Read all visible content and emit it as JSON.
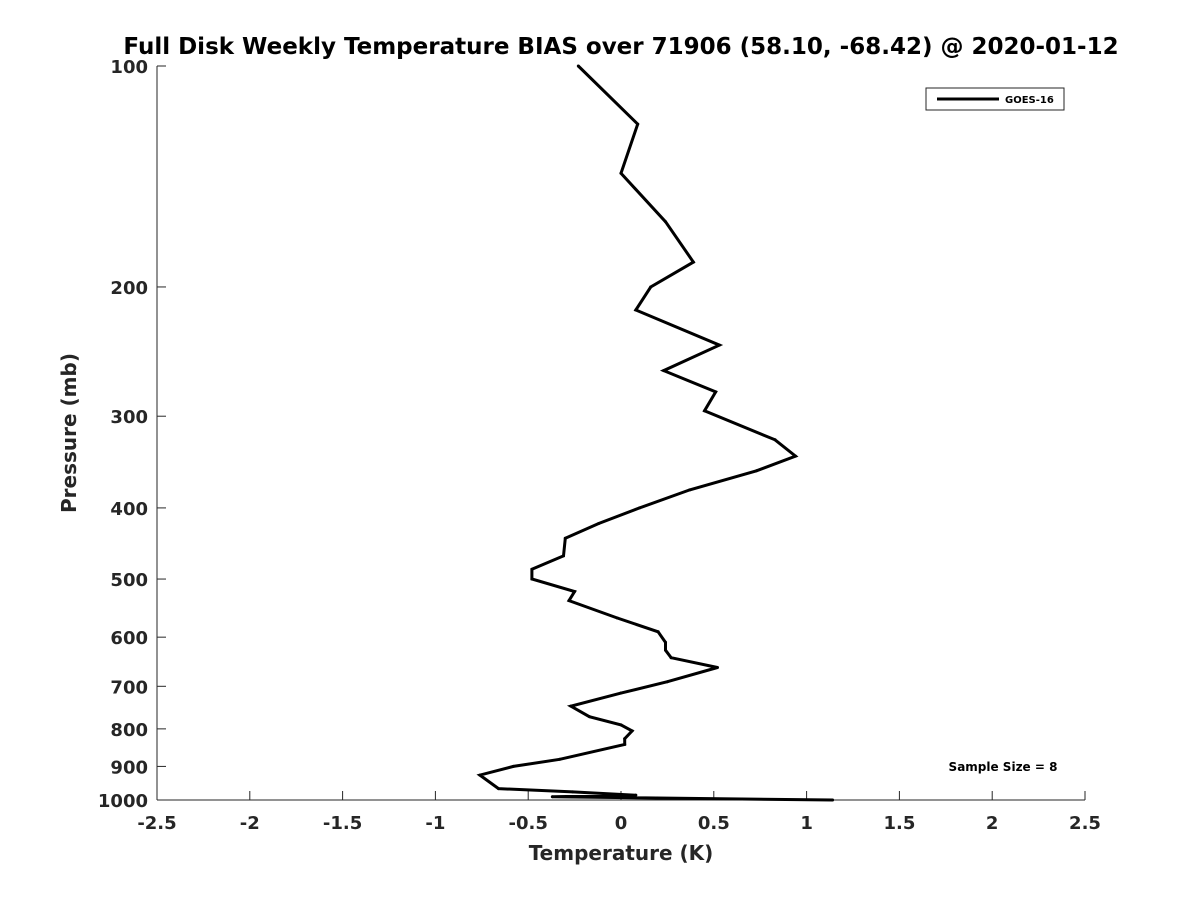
{
  "chart_data": {
    "type": "line",
    "title": "Full Disk Weekly Temperature BIAS over 71906 (58.10, -68.42) @ 2020-01-12",
    "xlabel": "Temperature (K)",
    "ylabel": "Pressure (mb)",
    "xlim": [
      -2.5,
      2.5
    ],
    "ylim": [
      1000,
      100
    ],
    "yscale": "log",
    "xticks": [
      -2.5,
      -2,
      -1.5,
      -1,
      -0.5,
      0,
      0.5,
      1,
      1.5,
      2,
      2.5
    ],
    "xtick_labels": [
      "-2.5",
      "-2",
      "-1.5",
      "-1",
      "-0.5",
      "0",
      "0.5",
      "1",
      "1.5",
      "2",
      "2.5"
    ],
    "yticks": [
      100,
      200,
      300,
      400,
      500,
      600,
      700,
      800,
      900,
      1000
    ],
    "ytick_labels": [
      "100",
      "200",
      "300",
      "400",
      "500",
      "600",
      "700",
      "800",
      "900",
      "1000"
    ],
    "grid": false,
    "legend_position": "top-right",
    "series": [
      {
        "name": "GOES-16",
        "color": "#000000",
        "points": [
          {
            "x": 1.14,
            "y": 1000
          },
          {
            "x": -0.37,
            "y": 990
          },
          {
            "x": 0.08,
            "y": 985
          },
          {
            "x": -0.26,
            "y": 975
          },
          {
            "x": -0.66,
            "y": 965
          },
          {
            "x": -0.76,
            "y": 925
          },
          {
            "x": -0.58,
            "y": 900
          },
          {
            "x": -0.33,
            "y": 880
          },
          {
            "x": 0.02,
            "y": 840
          },
          {
            "x": 0.02,
            "y": 825
          },
          {
            "x": 0.06,
            "y": 805
          },
          {
            "x": 0.0,
            "y": 790
          },
          {
            "x": -0.17,
            "y": 770
          },
          {
            "x": -0.27,
            "y": 745
          },
          {
            "x": 0.0,
            "y": 715
          },
          {
            "x": 0.25,
            "y": 690
          },
          {
            "x": 0.52,
            "y": 660
          },
          {
            "x": 0.27,
            "y": 640
          },
          {
            "x": 0.24,
            "y": 625
          },
          {
            "x": 0.24,
            "y": 610
          },
          {
            "x": 0.2,
            "y": 590
          },
          {
            "x": -0.02,
            "y": 565
          },
          {
            "x": -0.28,
            "y": 535
          },
          {
            "x": -0.25,
            "y": 520
          },
          {
            "x": -0.48,
            "y": 500
          },
          {
            "x": -0.48,
            "y": 485
          },
          {
            "x": -0.31,
            "y": 465
          },
          {
            "x": -0.3,
            "y": 440
          },
          {
            "x": -0.12,
            "y": 420
          },
          {
            "x": 0.1,
            "y": 400
          },
          {
            "x": 0.37,
            "y": 378
          },
          {
            "x": 0.73,
            "y": 356
          },
          {
            "x": 0.94,
            "y": 340
          },
          {
            "x": 0.83,
            "y": 323
          },
          {
            "x": 0.45,
            "y": 295
          },
          {
            "x": 0.51,
            "y": 278
          },
          {
            "x": 0.23,
            "y": 260
          },
          {
            "x": 0.53,
            "y": 240
          },
          {
            "x": 0.08,
            "y": 215
          },
          {
            "x": 0.16,
            "y": 200
          },
          {
            "x": 0.39,
            "y": 185
          },
          {
            "x": 0.24,
            "y": 163
          },
          {
            "x": 0.0,
            "y": 140
          },
          {
            "x": 0.09,
            "y": 120
          },
          {
            "x": -0.23,
            "y": 100
          }
        ]
      }
    ],
    "annotations": [
      {
        "text": "Sample Size = 8",
        "x": 2.0,
        "y": 900
      }
    ]
  }
}
